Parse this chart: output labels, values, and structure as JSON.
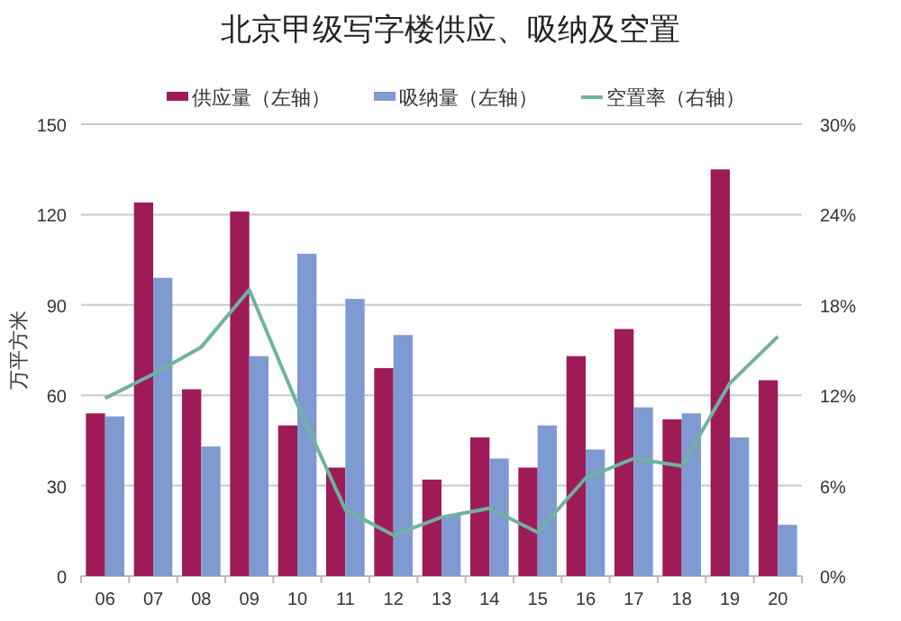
{
  "chart_data": {
    "type": "bar",
    "title": "北京甲级写字楼供应、吸纳及空置",
    "ylabel": "万平方米",
    "categories": [
      "06",
      "07",
      "08",
      "09",
      "10",
      "11",
      "12",
      "13",
      "14",
      "15",
      "16",
      "17",
      "18",
      "19",
      "20"
    ],
    "series": [
      {
        "name": "供应量（左轴）",
        "color": "#9e1b5a",
        "values": [
          54,
          124,
          62,
          121,
          50,
          36,
          69,
          32,
          46,
          36,
          73,
          82,
          52,
          135,
          65
        ]
      },
      {
        "name": "吸纳量（左轴）",
        "color": "#7f9ad0",
        "values": [
          53,
          99,
          43,
          73,
          107,
          92,
          80,
          20,
          39,
          50,
          42,
          56,
          54,
          46,
          17
        ]
      },
      {
        "name": "空置率（右轴）",
        "type": "line",
        "axis": "y2",
        "color": "#6fb39f",
        "values": [
          11.8,
          13.4,
          15.2,
          19,
          11.4,
          4.4,
          2.7,
          3.9,
          4.5,
          2.9,
          6.5,
          7.8,
          7.3,
          12.8,
          15.9
        ]
      }
    ],
    "ylim": [
      0,
      150
    ],
    "yticks": [
      0,
      30,
      60,
      90,
      120,
      150
    ],
    "y2lim": [
      0,
      30
    ],
    "y2ticks": [
      {
        "value": 0,
        "label": "0%"
      },
      {
        "value": 6,
        "label": "6%"
      },
      {
        "value": 12,
        "label": "12%"
      },
      {
        "value": 18,
        "label": "18%"
      },
      {
        "value": 24,
        "label": "24%"
      },
      {
        "value": 30,
        "label": "30%"
      }
    ],
    "grid": "y",
    "legend": "top"
  }
}
